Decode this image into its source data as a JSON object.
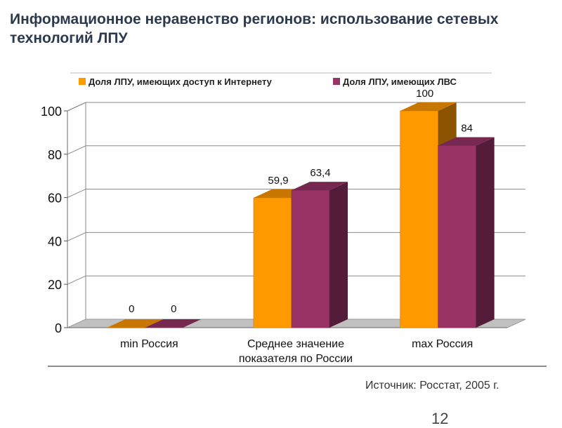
{
  "slide": {
    "title": "Информационное неравенство регионов: использование сетевых технологий ЛПУ",
    "source": "Источник: Росстат, 2005 г.",
    "page_number": "12"
  },
  "chart_data": {
    "type": "bar",
    "title": "",
    "xlabel": "",
    "ylabel": "",
    "categories": [
      "min Россия",
      "Среднее значение показателя по России",
      "max Россия"
    ],
    "category_lines": [
      [
        "min Россия"
      ],
      [
        "Среднее значение",
        "показателя по России"
      ],
      [
        "max Россия"
      ]
    ],
    "series": [
      {
        "name": "Доля ЛПУ, имеющих доступ к  Интернету",
        "values": [
          0,
          59.9,
          100
        ],
        "labels": [
          "0",
          "59,9",
          "100"
        ],
        "color": "#ff9900"
      },
      {
        "name": "Доля ЛПУ, имеющих ЛВС",
        "values": [
          0,
          63.4,
          84
        ],
        "labels": [
          "0",
          "63,4",
          "84"
        ],
        "color": "#993366"
      }
    ],
    "ylim": [
      0,
      100
    ],
    "yticks": [
      0,
      20,
      40,
      60,
      80,
      100
    ],
    "grid": true,
    "legend_position": "top"
  }
}
